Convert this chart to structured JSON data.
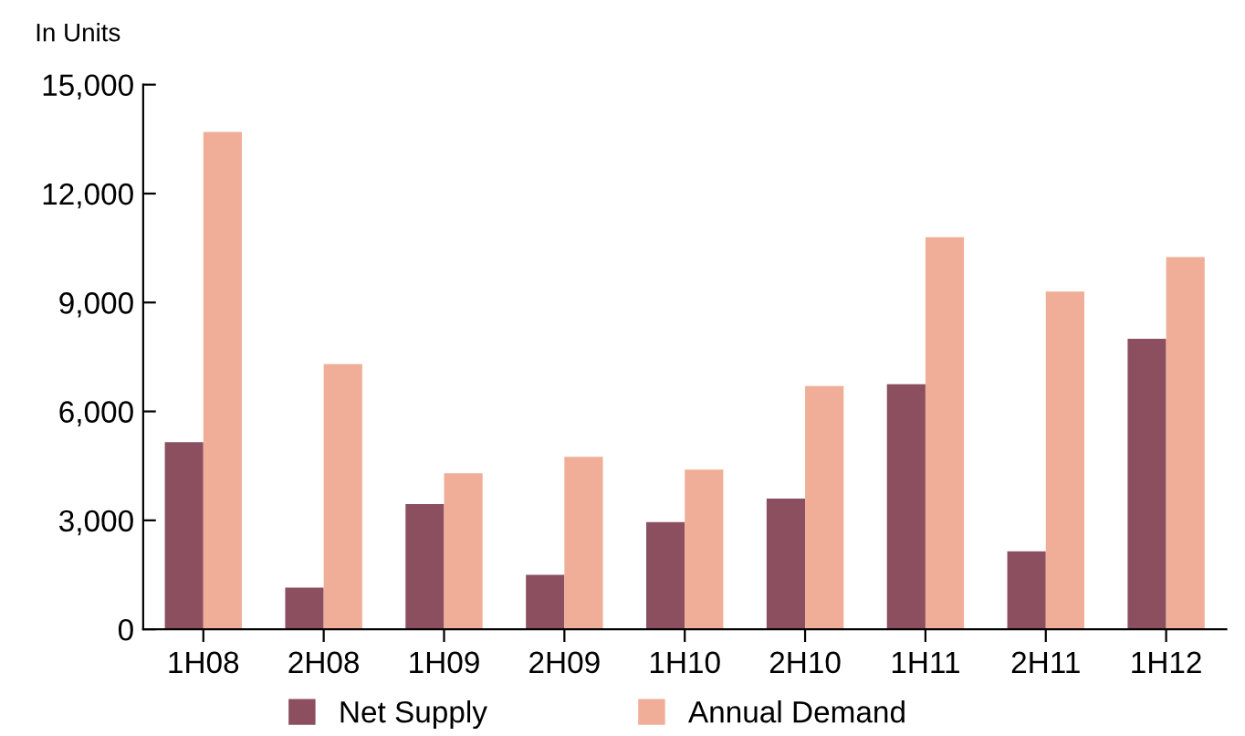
{
  "chart_data": {
    "type": "bar",
    "ylabel": "In Units",
    "categories": [
      "1H08",
      "2H08",
      "1H09",
      "2H09",
      "1H10",
      "2H10",
      "1H11",
      "2H11",
      "1H12"
    ],
    "series": [
      {
        "name": "Net Supply",
        "color": "#8b4f5f",
        "values": [
          5150,
          1150,
          3450,
          1500,
          2950,
          3600,
          6750,
          2150,
          8000
        ]
      },
      {
        "name": "Annual Demand",
        "color": "#f0ae98",
        "values": [
          13700,
          7300,
          4300,
          4750,
          4400,
          6700,
          10800,
          9300,
          10250
        ]
      }
    ],
    "ylim": [
      0,
      15000
    ],
    "yticks": [
      {
        "value": 0,
        "label": "0"
      },
      {
        "value": 3000,
        "label": "3,000"
      },
      {
        "value": 6000,
        "label": "6,000"
      },
      {
        "value": 9000,
        "label": "9,000"
      },
      {
        "value": 12000,
        "label": "12,000"
      },
      {
        "value": 15000,
        "label": "15,000"
      }
    ],
    "grid": false,
    "legend": "bottom"
  }
}
